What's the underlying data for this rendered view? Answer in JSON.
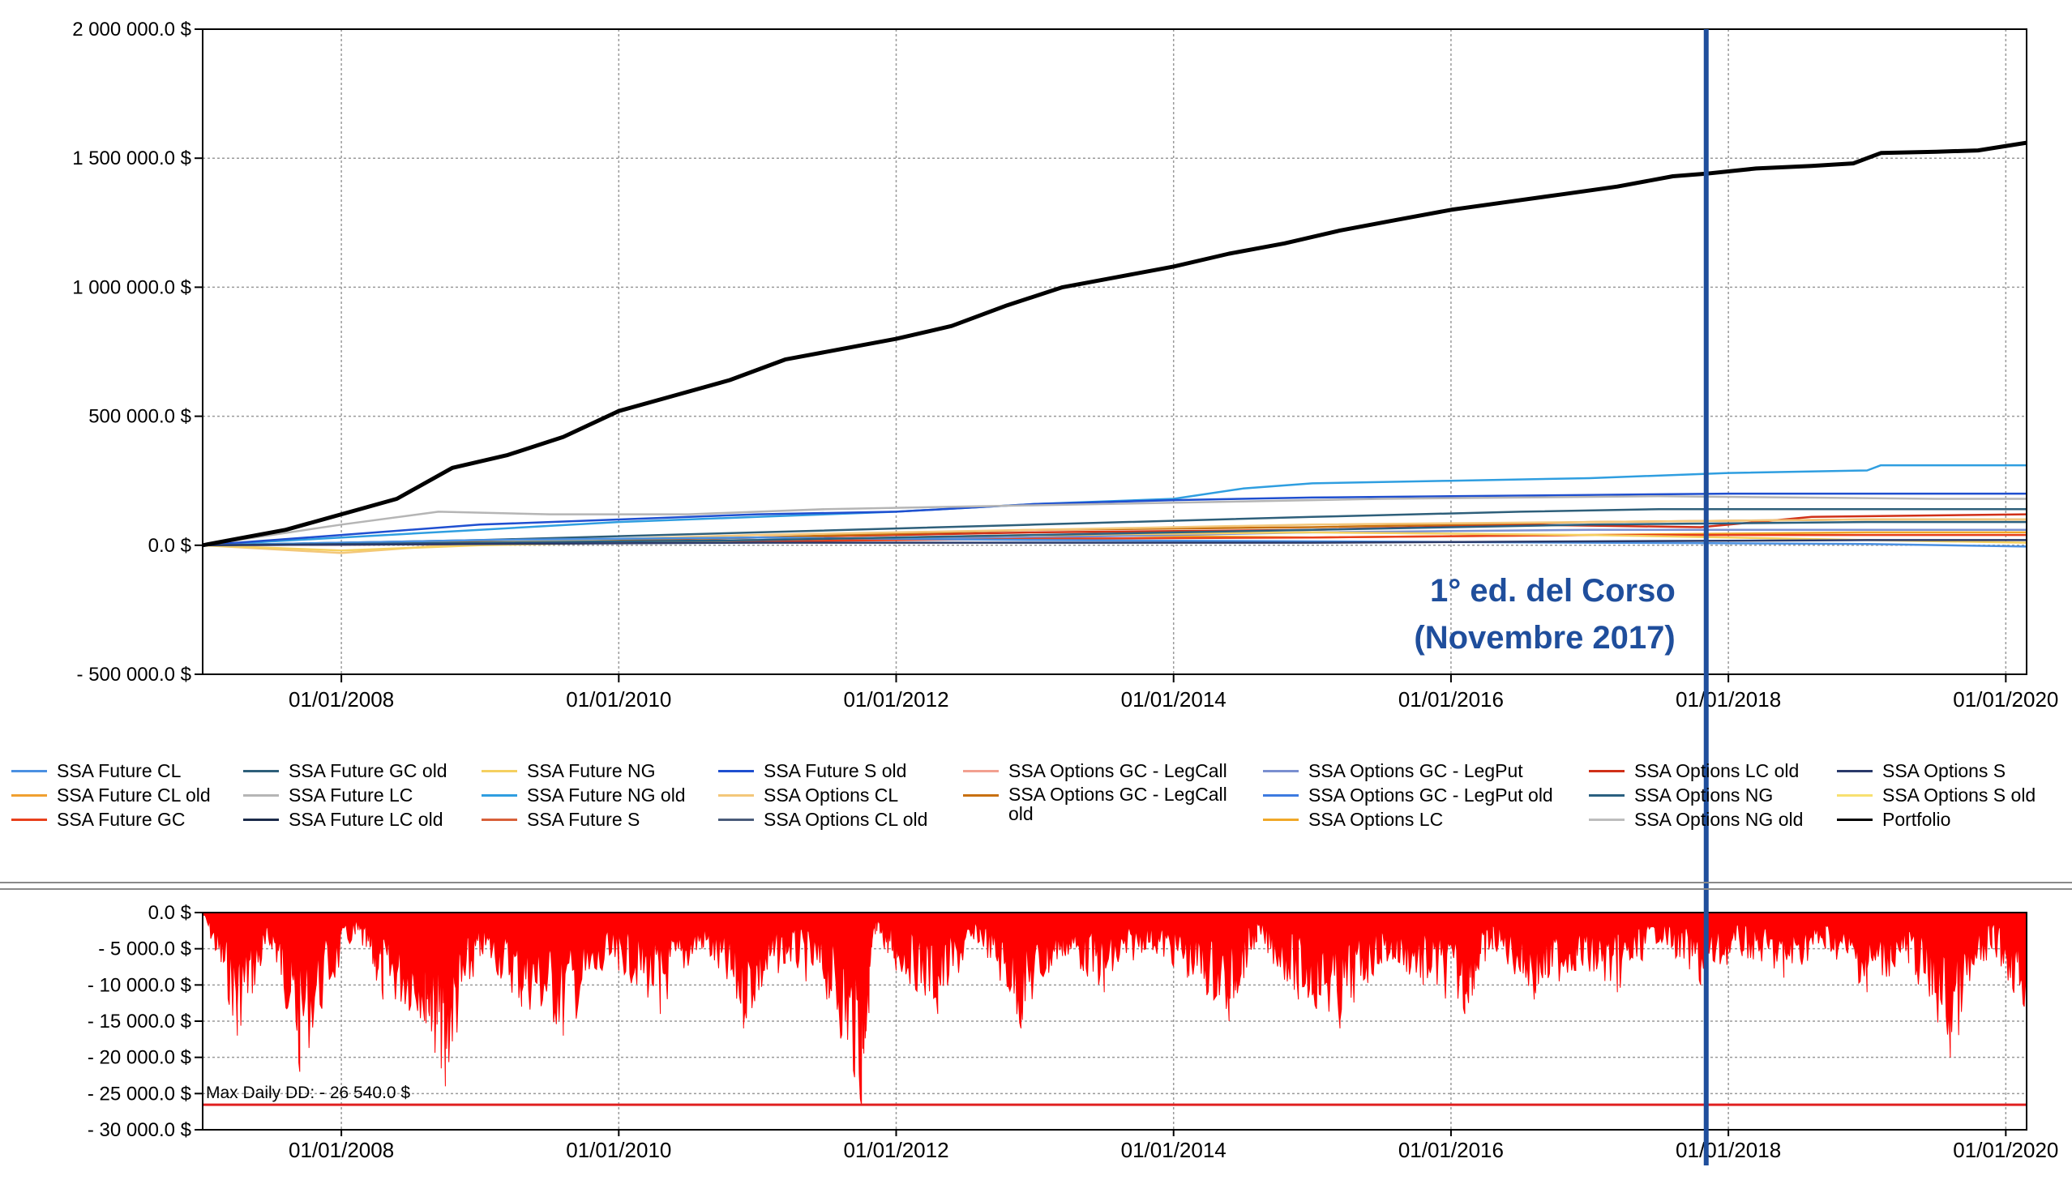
{
  "main_chart": {
    "y_ticks": [
      "2 000 000.0 $",
      "1 500 000.0 $",
      "1 000 000.0 $",
      "500 000.0 $",
      "0.0 $",
      "- 500 000.0 $"
    ],
    "y_values": [
      2000000,
      1500000,
      1000000,
      500000,
      0,
      -500000
    ],
    "x_ticks": [
      "01/01/2008",
      "01/01/2010",
      "01/01/2012",
      "01/01/2014",
      "01/01/2016",
      "01/01/2018",
      "01/01/2020"
    ],
    "x_tick_years": [
      2008,
      2010,
      2012,
      2014,
      2016,
      2018,
      2020
    ],
    "xlim": [
      2007.0,
      2020.15
    ],
    "ylim": [
      -500000,
      2000000
    ]
  },
  "annotation": {
    "line1": "1° ed. del Corso",
    "line2": "(Novembre 2017)",
    "x_year": 2017.84,
    "color": "#1f4e9c"
  },
  "legend": [
    {
      "label": "SSA Future CL",
      "color": "#4a90e2"
    },
    {
      "label": "SSA Future CL old",
      "color": "#f0a030"
    },
    {
      "label": "SSA Future GC",
      "color": "#e8401c"
    },
    {
      "label": "SSA Future GC old",
      "color": "#2e5f7a"
    },
    {
      "label": "SSA Future LC",
      "color": "#b5b5b5"
    },
    {
      "label": "SSA Future LC old",
      "color": "#1c2b4a"
    },
    {
      "label": "SSA Future NG",
      "color": "#f5d060"
    },
    {
      "label": "SSA Future NG old",
      "color": "#2f9ee0"
    },
    {
      "label": "SSA Future S",
      "color": "#d8603a"
    },
    {
      "label": "SSA Future S old",
      "color": "#1f4fd0"
    },
    {
      "label": "SSA Options CL",
      "color": "#f3c77a"
    },
    {
      "label": "SSA Options CL old",
      "color": "#4a5c7a"
    },
    {
      "label": "SSA Options GC - LegCall",
      "color": "#f2a090"
    },
    {
      "label": "SSA Options GC - LegCall old",
      "color": "#c87010"
    },
    {
      "label": "SSA Options GC - LegPut",
      "color": "#7a8fd0"
    },
    {
      "label": "SSA Options GC - LegPut old",
      "color": "#3d7be0"
    },
    {
      "label": "SSA Options LC",
      "color": "#f0a828"
    },
    {
      "label": "SSA Options LC old",
      "color": "#d03018"
    },
    {
      "label": "SSA Options NG",
      "color": "#2a6080"
    },
    {
      "label": "SSA Options NG old",
      "color": "#bdbdbd"
    },
    {
      "label": "SSA Options S",
      "color": "#2a3a6a"
    },
    {
      "label": "SSA Options S old",
      "color": "#f8e070"
    },
    {
      "label": "Portfolio",
      "color": "#000000"
    }
  ],
  "dd_chart": {
    "y_ticks": [
      "0.0 $",
      "- 5 000.0 $",
      "- 10 000.0 $",
      "- 15 000.0 $",
      "- 20 000.0 $",
      "- 25 000.0 $",
      "- 30 000.0 $"
    ],
    "y_values": [
      0,
      -5000,
      -10000,
      -15000,
      -20000,
      -25000,
      -30000
    ],
    "x_ticks": [
      "01/01/2008",
      "01/01/2010",
      "01/01/2012",
      "01/01/2014",
      "01/01/2016",
      "01/01/2018",
      "01/01/2020"
    ],
    "ylim": [
      -30000,
      0
    ],
    "max_dd_label": "Max Daily DD: - 26 540.0 $",
    "max_dd_value": -26540,
    "fill_color": "#ff0000"
  },
  "chart_data": [
    {
      "type": "line",
      "xlabel": "",
      "ylabel": "",
      "ylim": [
        -500000,
        2000000
      ],
      "grid": true,
      "legend_position": "bottom",
      "series": [
        {
          "name": "Portfolio",
          "color": "#000000",
          "x": [
            2007.0,
            2007.3,
            2007.6,
            2008.0,
            2008.4,
            2008.8,
            2009.2,
            2009.6,
            2010.0,
            2010.4,
            2010.8,
            2011.2,
            2011.6,
            2012.0,
            2012.4,
            2012.8,
            2013.2,
            2013.6,
            2014.0,
            2014.4,
            2014.8,
            2015.2,
            2015.6,
            2016.0,
            2016.4,
            2016.8,
            2017.2,
            2017.6,
            2017.84,
            2018.2,
            2018.6,
            2018.9,
            2019.1,
            2019.5,
            2019.8,
            2020.15
          ],
          "y": [
            0,
            30000,
            60000,
            120000,
            180000,
            300000,
            350000,
            420000,
            520000,
            580000,
            640000,
            720000,
            760000,
            800000,
            850000,
            930000,
            1000000,
            1040000,
            1080000,
            1130000,
            1170000,
            1220000,
            1260000,
            1300000,
            1330000,
            1360000,
            1390000,
            1430000,
            1440000,
            1460000,
            1470000,
            1480000,
            1520000,
            1525000,
            1530000,
            1560000
          ]
        },
        {
          "name": "SSA Future NG old",
          "color": "#2f9ee0",
          "x": [
            2007.0,
            2008.0,
            2009.0,
            2010.0,
            2011.0,
            2012.0,
            2013.0,
            2014.0,
            2014.5,
            2015.0,
            2016.0,
            2017.0,
            2018.0,
            2019.0,
            2019.1,
            2020.15
          ],
          "y": [
            0,
            30000,
            60000,
            90000,
            110000,
            130000,
            160000,
            180000,
            220000,
            240000,
            250000,
            260000,
            280000,
            290000,
            310000,
            310000
          ]
        },
        {
          "name": "SSA Future S old",
          "color": "#1f4fd0",
          "x": [
            2007.0,
            2008.0,
            2009.0,
            2010.0,
            2011.0,
            2012.0,
            2013.0,
            2014.0,
            2015.0,
            2016.0,
            2017.0,
            2018.0,
            2019.0,
            2020.15
          ],
          "y": [
            0,
            40000,
            80000,
            100000,
            120000,
            130000,
            160000,
            175000,
            185000,
            190000,
            195000,
            200000,
            200000,
            200000
          ]
        },
        {
          "name": "SSA Future LC",
          "color": "#b5b5b5",
          "x": [
            2007.0,
            2008.0,
            2008.7,
            2009.5,
            2010.5,
            2011.5,
            2012.5,
            2013.5,
            2014.5,
            2015.5,
            2016.5,
            2017.5,
            2018.5,
            2019.5,
            2020.15
          ],
          "y": [
            0,
            80000,
            130000,
            120000,
            120000,
            140000,
            150000,
            160000,
            170000,
            180000,
            185000,
            190000,
            185000,
            180000,
            180000
          ]
        },
        {
          "name": "SSA Future GC old",
          "color": "#2e5f7a",
          "x": [
            2007.0,
            2009.0,
            2011.0,
            2013.0,
            2015.0,
            2016.5,
            2017.5,
            2018.5,
            2020.15
          ],
          "y": [
            0,
            20000,
            50000,
            80000,
            110000,
            130000,
            140000,
            140000,
            140000
          ]
        },
        {
          "name": "SSA Options LC old",
          "color": "#d03018",
          "x": [
            2007.0,
            2009.0,
            2011.0,
            2013.0,
            2015.0,
            2016.5,
            2017.8,
            2018.6,
            2020.15
          ],
          "y": [
            0,
            10000,
            30000,
            50000,
            60000,
            80000,
            70000,
            110000,
            120000
          ]
        },
        {
          "name": "SSA Options GC - LegCall old",
          "color": "#c87010",
          "x": [
            2007.0,
            2009.0,
            2011.0,
            2013.0,
            2015.0,
            2017.0,
            2019.0,
            2020.15
          ],
          "y": [
            0,
            15000,
            30000,
            60000,
            70000,
            90000,
            100000,
            100000
          ]
        },
        {
          "name": "SSA Options CL",
          "color": "#f3c77a",
          "x": [
            2007.0,
            2008.0,
            2009.0,
            2011.0,
            2013.0,
            2015.0,
            2017.0,
            2019.0,
            2020.15
          ],
          "y": [
            0,
            -30000,
            10000,
            40000,
            60000,
            80000,
            90000,
            100000,
            100000
          ]
        },
        {
          "name": "SSA Options LC",
          "color": "#f0a828",
          "x": [
            2007.0,
            2009.0,
            2011.0,
            2013.0,
            2015.0,
            2017.0,
            2019.0,
            2020.15
          ],
          "y": [
            0,
            10000,
            20000,
            40000,
            30000,
            40000,
            50000,
            50000
          ]
        },
        {
          "name": "SSA Options GC - LegPut",
          "color": "#7a8fd0",
          "x": [
            2007.0,
            2009.0,
            2011.0,
            2013.0,
            2015.0,
            2017.0,
            2019.0,
            2020.15
          ],
          "y": [
            0,
            5000,
            20000,
            30000,
            50000,
            60000,
            60000,
            60000
          ]
        },
        {
          "name": "SSA Future GC",
          "color": "#e8401c",
          "x": [
            2007.0,
            2009.0,
            2011.0,
            2013.0,
            2015.0,
            2017.0,
            2019.0,
            2020.15
          ],
          "y": [
            0,
            5000,
            15000,
            25000,
            30000,
            40000,
            40000,
            40000
          ]
        },
        {
          "name": "SSA Future CL",
          "color": "#4a90e2",
          "x": [
            2007.0,
            2009.0,
            2011.0,
            2013.0,
            2015.0,
            2017.0,
            2019.0,
            2020.15
          ],
          "y": [
            0,
            20000,
            30000,
            20000,
            15000,
            10000,
            5000,
            -5000
          ]
        },
        {
          "name": "SSA Future NG",
          "color": "#f5d060",
          "x": [
            2007.0,
            2008.0,
            2009.0,
            2011.0,
            2013.0,
            2015.0,
            2017.0,
            2019.0,
            2020.15
          ],
          "y": [
            0,
            -20000,
            0,
            20000,
            40000,
            50000,
            40000,
            20000,
            10000
          ]
        },
        {
          "name": "SSA Options NG",
          "color": "#2a6080",
          "x": [
            2007.0,
            2009.0,
            2011.0,
            2013.0,
            2015.0,
            2017.0,
            2019.0,
            2020.15
          ],
          "y": [
            0,
            10000,
            20000,
            40000,
            60000,
            80000,
            90000,
            90000
          ]
        },
        {
          "name": "SSA Options S",
          "color": "#2a3a6a",
          "x": [
            2007.0,
            2009.0,
            2011.0,
            2013.0,
            2015.0,
            2017.0,
            2019.0,
            2020.15
          ],
          "y": [
            0,
            5000,
            10000,
            10000,
            10000,
            15000,
            20000,
            20000
          ]
        }
      ]
    },
    {
      "type": "area",
      "xlabel": "",
      "ylabel": "",
      "ylim": [
        -30000,
        0
      ],
      "grid": true,
      "series": [
        {
          "name": "",
          "color": "#ff0000",
          "x": [
            2007.0,
            2007.25,
            2007.5,
            2007.7,
            2008.1,
            2008.3,
            2008.6,
            2008.75,
            2009.0,
            2009.3,
            2009.6,
            2010.0,
            2010.3,
            2010.6,
            2010.9,
            2011.2,
            2011.5,
            2011.75,
            2011.85,
            2012.0,
            2012.3,
            2012.6,
            2012.9,
            2013.2,
            2013.5,
            2013.8,
            2014.1,
            2014.4,
            2014.6,
            2014.9,
            2015.2,
            2015.5,
            2015.8,
            2016.1,
            2016.3,
            2016.6,
            2016.9,
            2017.2,
            2017.5,
            2017.8,
            2018.1,
            2018.4,
            2018.7,
            2019.0,
            2019.3,
            2019.6,
            2019.9,
            2020.15
          ],
          "y": [
            0,
            -17000,
            -5000,
            -22000,
            -3000,
            -12000,
            -15000,
            -24000,
            -6000,
            -13000,
            -17000,
            -8000,
            -14000,
            -5000,
            -16000,
            -7000,
            -12000,
            -26540,
            -3000,
            -8000,
            -14000,
            -4000,
            -16000,
            -6000,
            -11000,
            -5000,
            -9000,
            -15000,
            -4000,
            -12000,
            -16000,
            -7000,
            -10000,
            -14000,
            -5000,
            -12000,
            -8000,
            -11000,
            -4000,
            -10000,
            -6000,
            -9000,
            -5000,
            -11000,
            -7000,
            -20000,
            -5000,
            -15000
          ]
        }
      ]
    }
  ]
}
